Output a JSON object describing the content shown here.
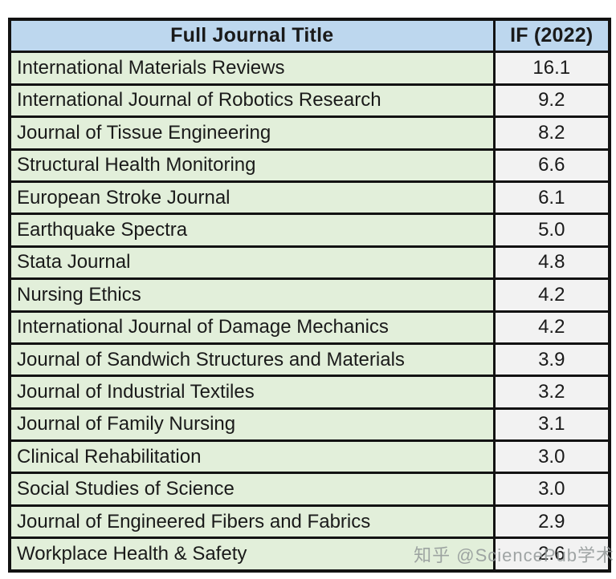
{
  "table": {
    "columns": [
      "Full Journal Title",
      "IF (2022)"
    ],
    "rows": [
      {
        "title": "International Materials Reviews",
        "if": "16.1"
      },
      {
        "title": "International Journal of Robotics Research",
        "if": "9.2"
      },
      {
        "title": "Journal of Tissue Engineering",
        "if": "8.2"
      },
      {
        "title": "Structural Health Monitoring",
        "if": "6.6"
      },
      {
        "title": "European Stroke Journal",
        "if": "6.1"
      },
      {
        "title": "Earthquake Spectra",
        "if": "5.0"
      },
      {
        "title": "Stata Journal",
        "if": "4.8"
      },
      {
        "title": "Nursing Ethics",
        "if": "4.2"
      },
      {
        "title": "International Journal of Damage Mechanics",
        "if": "4.2"
      },
      {
        "title": "Journal of Sandwich Structures and Materials",
        "if": "3.9"
      },
      {
        "title": "Journal of Industrial Textiles",
        "if": "3.2"
      },
      {
        "title": "Journal of Family Nursing",
        "if": "3.1"
      },
      {
        "title": "Clinical Rehabilitation",
        "if": "3.0"
      },
      {
        "title": "Social Studies of Science",
        "if": "3.0"
      },
      {
        "title": "Journal of Engineered Fibers and Fabrics",
        "if": "2.9"
      },
      {
        "title": "Workplace Health & Safety",
        "if": "2.6"
      }
    ]
  },
  "watermark": {
    "text": "知乎 @SciencePub学术"
  },
  "colors": {
    "header_bg": "#BDD7EE",
    "title_cell_bg": "#E2EFDA",
    "if_cell_bg": "#F2F2F2",
    "border": "#121212",
    "watermark": "#919696"
  },
  "chart_data": {
    "type": "table",
    "title": "",
    "columns": [
      "Full Journal Title",
      "IF (2022)"
    ],
    "rows": [
      [
        "International Materials Reviews",
        16.1
      ],
      [
        "International Journal of Robotics Research",
        9.2
      ],
      [
        "Journal of Tissue Engineering",
        8.2
      ],
      [
        "Structural Health Monitoring",
        6.6
      ],
      [
        "European Stroke Journal",
        6.1
      ],
      [
        "Earthquake Spectra",
        5.0
      ],
      [
        "Stata Journal",
        4.8
      ],
      [
        "Nursing Ethics",
        4.2
      ],
      [
        "International Journal of Damage Mechanics",
        4.2
      ],
      [
        "Journal of Sandwich Structures and Materials",
        3.9
      ],
      [
        "Journal of Industrial Textiles",
        3.2
      ],
      [
        "Journal of Family Nursing",
        3.1
      ],
      [
        "Clinical Rehabilitation",
        3.0
      ],
      [
        "Social Studies of Science",
        3.0
      ],
      [
        "Journal of Engineered Fibers and Fabrics",
        2.9
      ],
      [
        "Workplace Health & Safety",
        2.6
      ]
    ]
  }
}
